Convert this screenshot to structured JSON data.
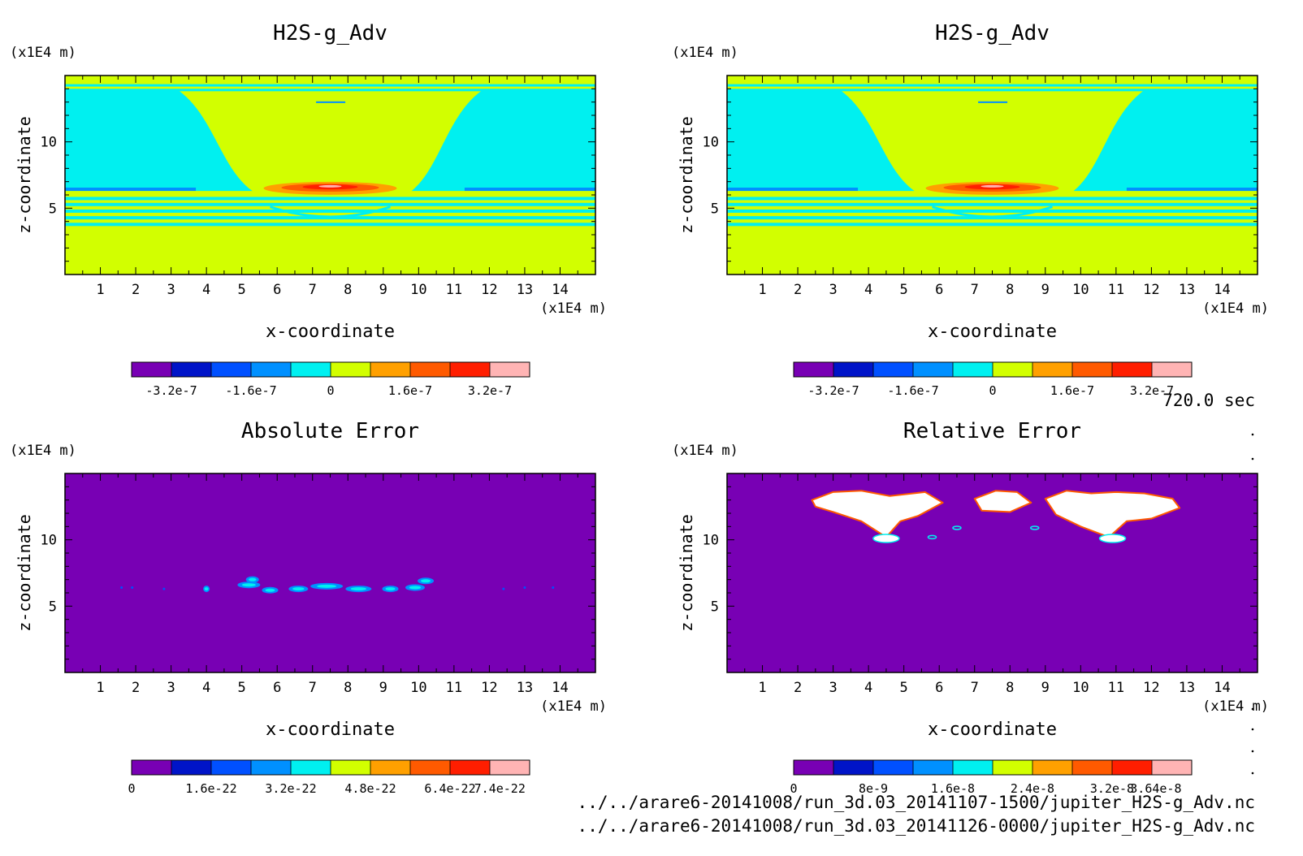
{
  "chart_data": [
    {
      "type": "heatmap",
      "title": "H2S-g_Adv",
      "xlabel": "x-coordinate",
      "ylabel": "z-coordinate",
      "x_unit": "(x1E4 m)",
      "y_unit": "(x1E4 m)",
      "xlim": [
        0,
        15
      ],
      "ylim": [
        0,
        15
      ],
      "x_ticks": [
        "1",
        "2",
        "3",
        "4",
        "5",
        "6",
        "7",
        "8",
        "9",
        "10",
        "11",
        "12",
        "13",
        "14"
      ],
      "y_ticks": [
        "5",
        "10"
      ],
      "field": "tracer",
      "colorbar": {
        "colors": [
          "#7800b4",
          "#0014c8",
          "#0050ff",
          "#0090ff",
          "#00f0f0",
          "#d2ff00",
          "#ffa000",
          "#ff5a00",
          "#ff1e00",
          "#ffb4b4"
        ],
        "tick_labels": [
          "-3.2e-7",
          "-1.6e-7",
          "0",
          "1.6e-7",
          "3.2e-7"
        ],
        "tick_positions": [
          1,
          3,
          5,
          7,
          9
        ]
      }
    },
    {
      "type": "heatmap",
      "title": "H2S-g_Adv",
      "xlabel": "x-coordinate",
      "ylabel": "z-coordinate",
      "x_unit": "(x1E4 m)",
      "y_unit": "(x1E4 m)",
      "xlim": [
        0,
        15
      ],
      "ylim": [
        0,
        15
      ],
      "x_ticks": [
        "1",
        "2",
        "3",
        "4",
        "5",
        "6",
        "7",
        "8",
        "9",
        "10",
        "11",
        "12",
        "13",
        "14"
      ],
      "y_ticks": [
        "5",
        "10"
      ],
      "field": "tracer",
      "colorbar": {
        "colors": [
          "#7800b4",
          "#0014c8",
          "#0050ff",
          "#0090ff",
          "#00f0f0",
          "#d2ff00",
          "#ffa000",
          "#ff5a00",
          "#ff1e00",
          "#ffb4b4"
        ],
        "tick_labels": [
          "-3.2e-7",
          "-1.6e-7",
          "0",
          "1.6e-7",
          "3.2e-7"
        ],
        "tick_positions": [
          1,
          3,
          5,
          7,
          9
        ]
      }
    },
    {
      "type": "heatmap",
      "title": "Absolute Error",
      "xlabel": "x-coordinate",
      "ylabel": "z-coordinate",
      "x_unit": "(x1E4 m)",
      "y_unit": "(x1E4 m)",
      "xlim": [
        0,
        15
      ],
      "ylim": [
        0,
        15
      ],
      "x_ticks": [
        "1",
        "2",
        "3",
        "4",
        "5",
        "6",
        "7",
        "8",
        "9",
        "10",
        "11",
        "12",
        "13",
        "14"
      ],
      "y_ticks": [
        "5",
        "10"
      ],
      "field": "abs_error",
      "colorbar": {
        "colors": [
          "#7800b4",
          "#0014c8",
          "#0050ff",
          "#0090ff",
          "#00f0f0",
          "#d2ff00",
          "#ffa000",
          "#ff5a00",
          "#ff1e00",
          "#ffb4b4"
        ],
        "tick_labels": [
          "0",
          "1.6e-22",
          "3.2e-22",
          "4.8e-22",
          "6.4e-22",
          "7.4e-22"
        ],
        "tick_positions": [
          0,
          2,
          4,
          6,
          8,
          9.25
        ]
      }
    },
    {
      "type": "heatmap",
      "title": "Relative Error",
      "xlabel": "x-coordinate",
      "ylabel": "z-coordinate",
      "x_unit": "(x1E4 m)",
      "y_unit": "(x1E4 m)",
      "xlim": [
        0,
        15
      ],
      "ylim": [
        0,
        15
      ],
      "x_ticks": [
        "1",
        "2",
        "3",
        "4",
        "5",
        "6",
        "7",
        "8",
        "9",
        "10",
        "11",
        "12",
        "13",
        "14"
      ],
      "y_ticks": [
        "5",
        "10"
      ],
      "field": "rel_error",
      "colorbar": {
        "colors": [
          "#7800b4",
          "#0014c8",
          "#0050ff",
          "#0090ff",
          "#00f0f0",
          "#d2ff00",
          "#ffa000",
          "#ff5a00",
          "#ff1e00",
          "#ffb4b4"
        ],
        "tick_labels": [
          "0",
          "8e-9",
          "1.6e-8",
          "2.4e-8",
          "3.2e-8",
          "3.64e-8"
        ],
        "tick_positions": [
          0,
          2,
          4,
          6,
          8,
          9.1
        ]
      }
    }
  ],
  "time_label": "720.0 sec",
  "files": [
    "../../arare6-20141008/run_3d.03_20141107-1500/jupiter_H2S-g_Adv.nc",
    "../../arare6-20141008/run_3d.03_20141126-0000/jupiter_H2S-g_Adv.nc"
  ],
  "colors": {
    "background_field": "#d2ff00",
    "cyan": "#00f0f0",
    "purple": "#7800b4",
    "white": "#ffffff"
  }
}
